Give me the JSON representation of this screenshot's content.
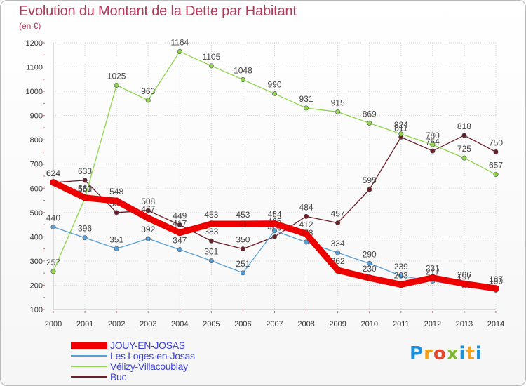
{
  "chart_data": {
    "type": "line",
    "title": "Evolution du Montant de la Dette par Habitant",
    "subtitle": "(en €)",
    "x": [
      "2000",
      "2001",
      "2002",
      "2003",
      "2004",
      "2005",
      "2006",
      "2007",
      "2008",
      "2009",
      "2010",
      "2011",
      "2012",
      "2013",
      "2014"
    ],
    "ylim": [
      100,
      1200
    ],
    "yticks": [
      100,
      200,
      300,
      400,
      500,
      600,
      700,
      800,
      900,
      1000,
      1100,
      1200
    ],
    "grid": true,
    "legend_position": "bottom-left",
    "series": [
      {
        "name": "Buc",
        "color": "#6b1f2a",
        "values": [
          624,
          633,
          500,
          508,
          449,
          383,
          350,
          400,
          484,
          457,
          595,
          811,
          754,
          818,
          750
        ]
      },
      {
        "name": "Vélizy-Villacoublay",
        "color": "#8fd64c",
        "values": [
          257,
          559,
          1025,
          963,
          1164,
          1105,
          1048,
          990,
          931,
          915,
          869,
          824,
          780,
          725,
          657
        ]
      },
      {
        "name": "Les Loges-en-Josas",
        "color": "#5a9fd6",
        "values": [
          440,
          396,
          351,
          392,
          347,
          301,
          251,
          425,
          378,
          334,
          290,
          239,
          217,
          197,
          180
        ]
      },
      {
        "name": "JOUY-EN-JOSAS",
        "color": "#ee0000",
        "values": [
          624,
          561,
          548,
          477,
          417,
          453,
          453,
          454,
          412,
          262,
          230,
          203,
          231,
          206,
          187
        ]
      }
    ]
  },
  "brand": {
    "p": "P",
    "r": "r",
    "o": "o",
    "x": "x",
    "i": "i",
    "t": "t",
    "i2": "i"
  }
}
